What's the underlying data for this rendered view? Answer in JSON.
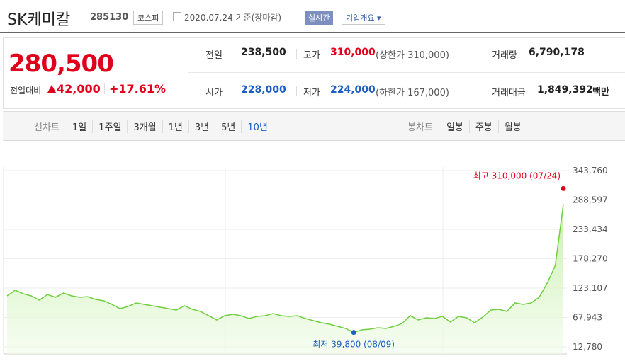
{
  "header": {
    "name": "SK케미칼",
    "code": "285130",
    "market": "코스피",
    "date": "2020.07.24 기준(장마감)",
    "realtime": "실시간",
    "company_info": "기업개요"
  },
  "price": {
    "current": "280,500",
    "change_label": "전일대비",
    "change": "42,000",
    "change_pct": "+17.61%"
  },
  "stats": [
    {
      "label": "전일",
      "value": "238,500"
    },
    {
      "label": "고가",
      "value": "310,000",
      "note": "(상한가 310,000)"
    },
    {
      "label": "거래량",
      "value": "6,790,178"
    },
    {
      "label": "시가",
      "value": "228,000"
    },
    {
      "label": "저가",
      "value": "224,000",
      "note": "(하한가 167,000)"
    },
    {
      "label": "거래대금",
      "value": "1,849,392",
      "unit": "백만"
    }
  ],
  "tabs": {
    "line_label": "선차트",
    "line_periods": [
      "1일",
      "1주일",
      "3개월",
      "1년",
      "3년",
      "5년",
      "10년"
    ],
    "candle_label": "봉차트",
    "candle_periods": [
      "일봉",
      "주봉",
      "월봉"
    ]
  },
  "chart_data": {
    "type": "line",
    "color": "#6fcf3f",
    "grid": true,
    "values": [
      108500,
      119100,
      112500,
      108500,
      100500,
      111100,
      105800,
      113800,
      108500,
      105800,
      107000,
      101800,
      99200,
      92500,
      84500,
      88500,
      95200,
      92500,
      89900,
      87200,
      84500,
      81900,
      89900,
      83200,
      79200,
      71300,
      63300,
      71300,
      73900,
      71300,
      65900,
      70000,
      71300,
      75300,
      71300,
      70000,
      71300,
      65900,
      62000,
      58000,
      55300,
      51300,
      47300,
      39800,
      44700,
      46000,
      48700,
      47300,
      51300,
      56600,
      71300,
      63300,
      67300,
      65900,
      70000,
      59300,
      70000,
      67300,
      58000,
      68600,
      81900,
      83200,
      79200,
      95200,
      92500,
      95200,
      105800,
      132400,
      165600,
      280500
    ],
    "ylim": [
      12780,
      343760
    ],
    "yticks": [
      {
        "value": 343760,
        "label": "343,760"
      },
      {
        "value": 288597,
        "label": "288,597"
      },
      {
        "value": 233434,
        "label": "233,434"
      },
      {
        "value": 178270,
        "label": "178,270"
      },
      {
        "value": 123107,
        "label": "123,107"
      },
      {
        "value": 67943,
        "label": "67,943"
      },
      {
        "value": 12780,
        "label": "12,780"
      }
    ],
    "annotations": [
      {
        "text": "최고 310,000 (07/24)",
        "value": 310000,
        "color": "#e0001b"
      },
      {
        "text": "최저 39,800 (08/09)",
        "value": 39800,
        "color": "#1f5fc4"
      }
    ]
  }
}
